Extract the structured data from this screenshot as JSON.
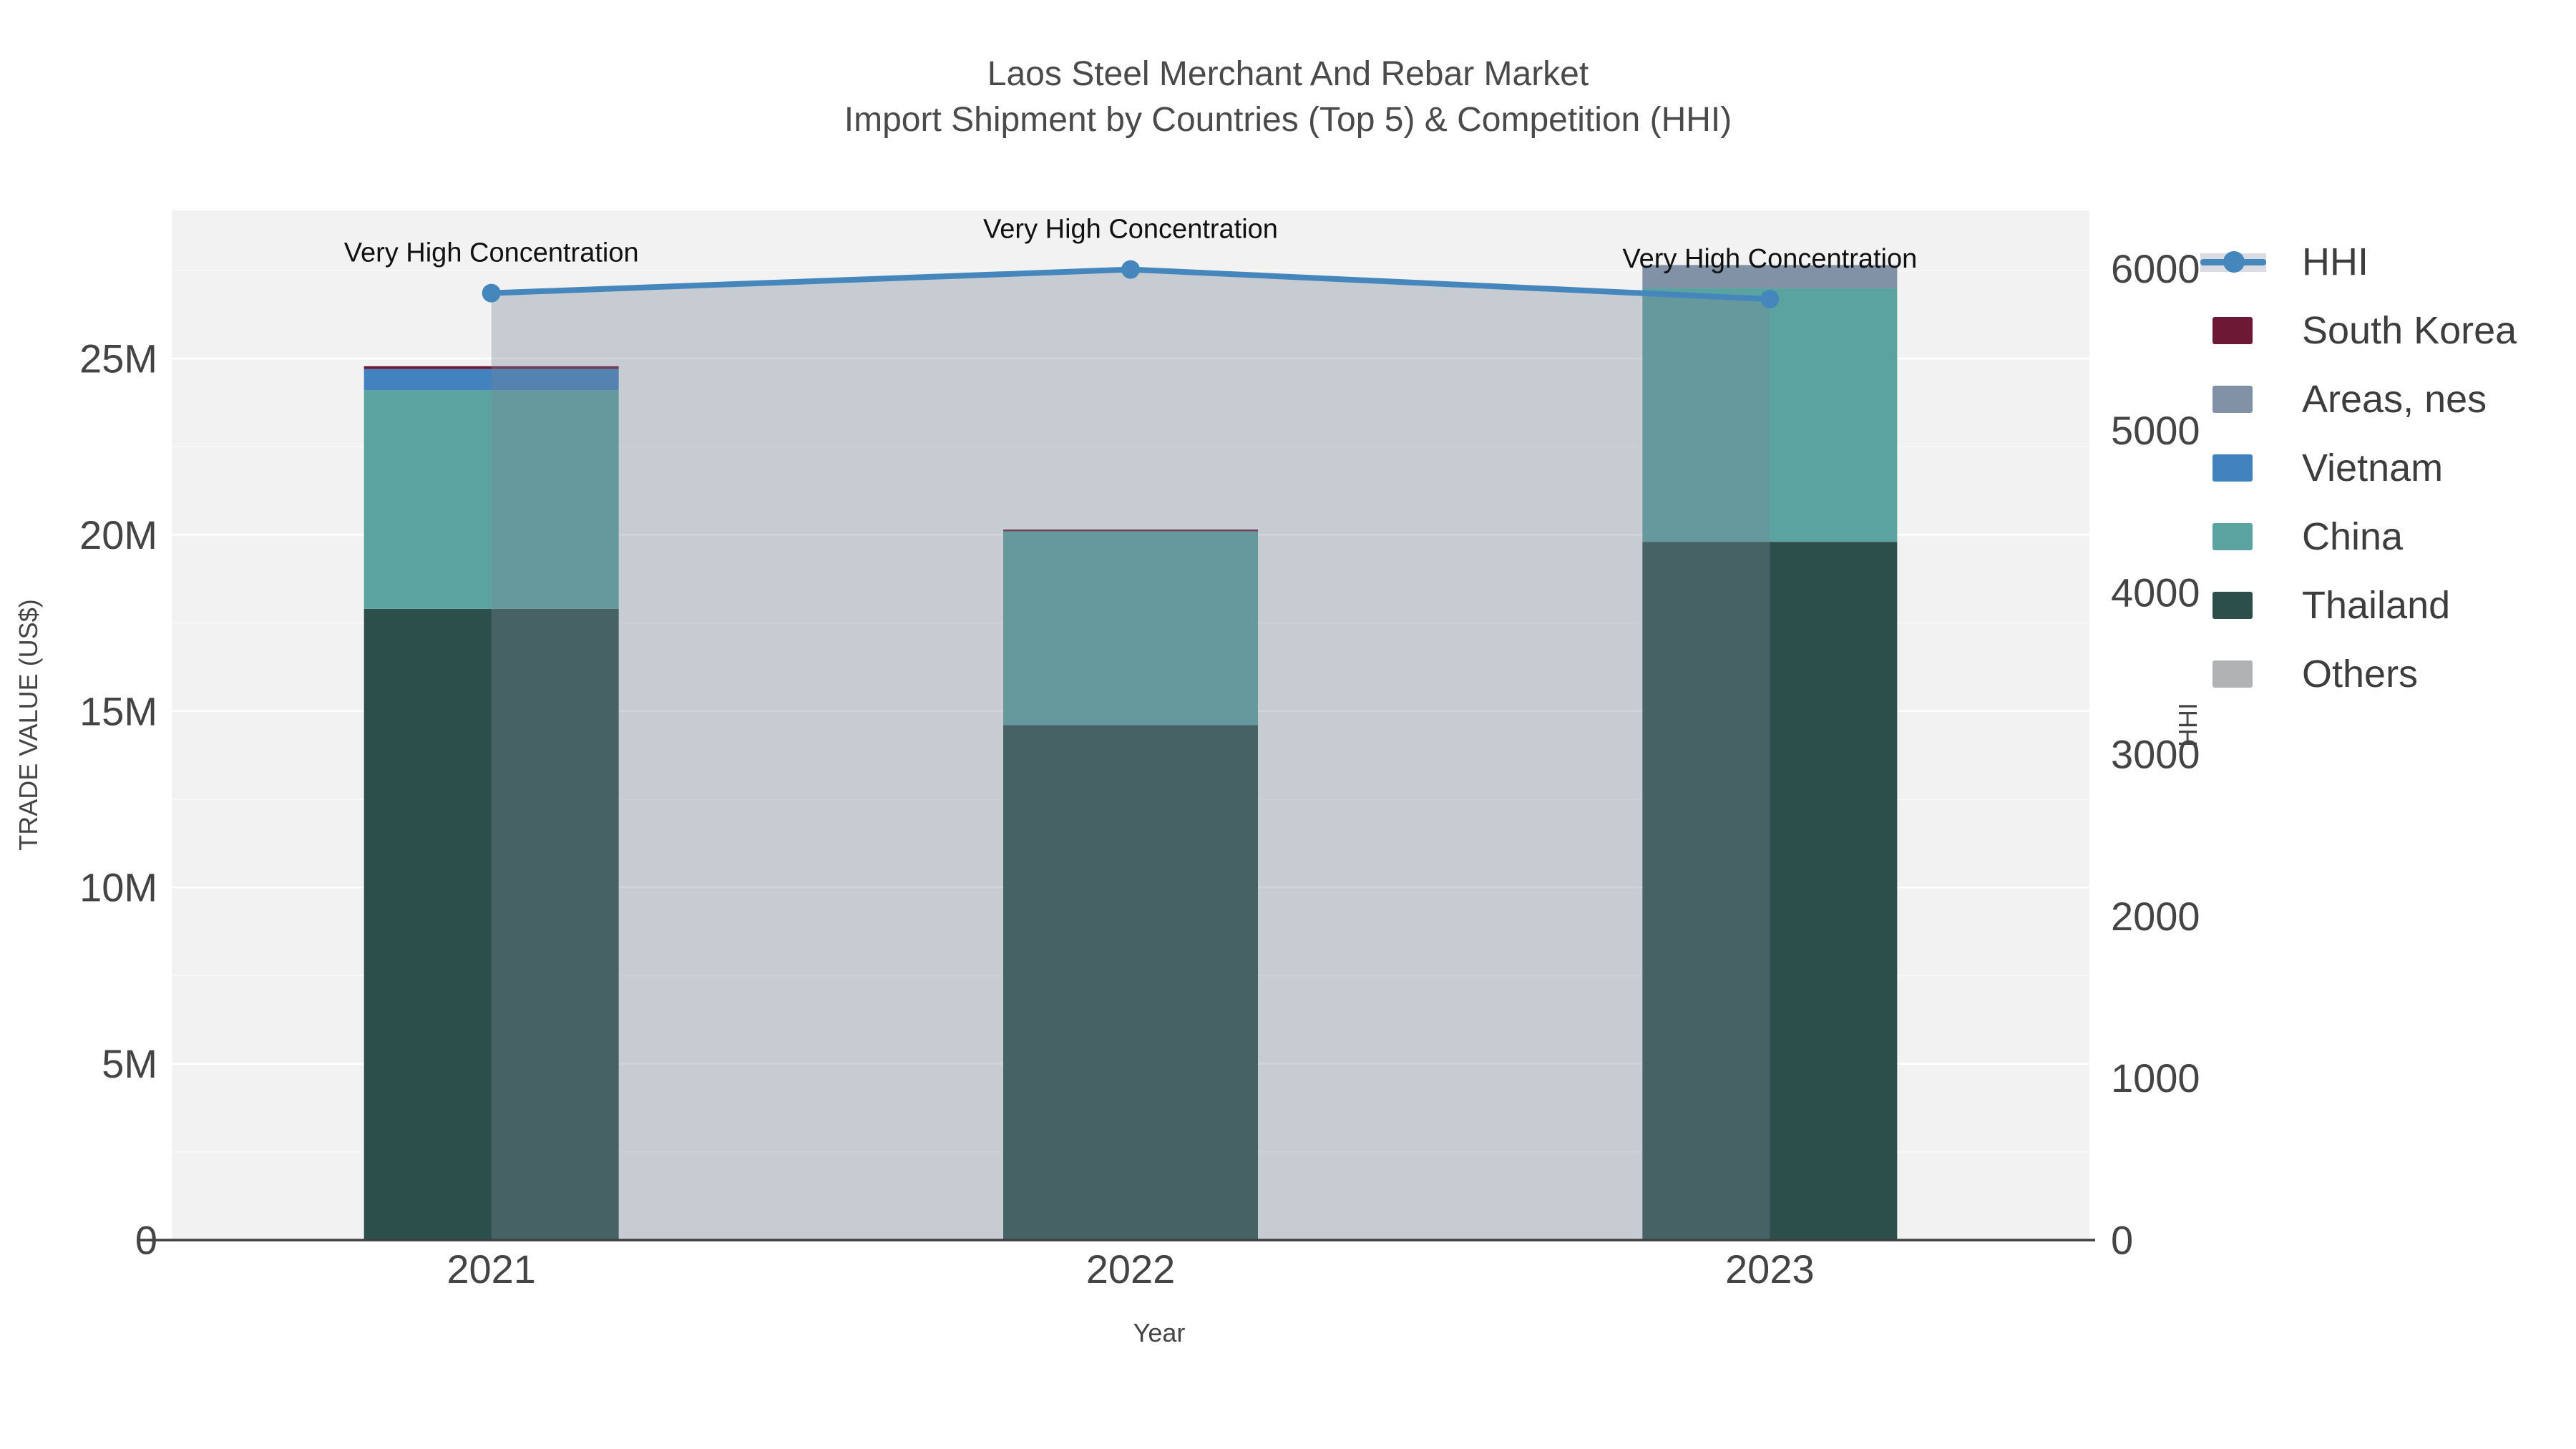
{
  "title": {
    "line1": "Laos Steel Merchant And Rebar Market",
    "line2": "Import Shipment by Countries (Top 5) & Competition (HHI)"
  },
  "chart_data": {
    "type": "bar+line",
    "title": "Laos Steel Merchant And Rebar Market — Import Shipment by Countries (Top 5) & Competition (HHI)",
    "categories": [
      "2021",
      "2022",
      "2023"
    ],
    "bar_unit": "M US$",
    "series": [
      {
        "name": "Thailand",
        "color": "#2d4f4b",
        "values": [
          17.9,
          14.6,
          19.8
        ]
      },
      {
        "name": "China",
        "color": "#5ba3a0",
        "values": [
          6.2,
          5.5,
          7.2
        ]
      },
      {
        "name": "Vietnam",
        "color": "#4282bf",
        "values": [
          0.6,
          0,
          0
        ]
      },
      {
        "name": "Areas, nes",
        "color": "#8191a6",
        "values": [
          0,
          0,
          0.65
        ]
      },
      {
        "name": "South Korea",
        "color": "#6d1936",
        "values": [
          0.08,
          0.05,
          0
        ]
      },
      {
        "name": "Others",
        "color": "#b0b2b4",
        "values": [
          0,
          0,
          0
        ]
      }
    ],
    "line_series": {
      "name": "HHI",
      "color": "#4587bd",
      "fill_color": "rgba(119,136,153,0.35)",
      "values": [
        5849,
        5995,
        5812
      ]
    },
    "annotations": [
      "Very High Concentration",
      "Very High Concentration",
      "Very High Concentration"
    ],
    "y_left": {
      "title": "TRADE VALUE (US$)",
      "tick_labels": [
        "0",
        "5M",
        "10M",
        "15M",
        "20M",
        "25M"
      ],
      "tick_values": [
        0,
        5,
        10,
        15,
        20,
        25
      ],
      "range": [
        0,
        29.2
      ],
      "minor_step": 2.5
    },
    "y_right": {
      "title": "HHI",
      "tick_labels": [
        "0",
        "1000",
        "2000",
        "3000",
        "4000",
        "5000",
        "6000"
      ],
      "tick_values": [
        0,
        1000,
        2000,
        3000,
        4000,
        5000,
        6000
      ],
      "range": [
        0,
        6360
      ]
    },
    "x_axis": {
      "title": "Year"
    },
    "legend": [
      {
        "label": "HHI",
        "type": "line",
        "color": "#4587bd"
      },
      {
        "label": "South Korea",
        "type": "swatch",
        "color": "#6d1936"
      },
      {
        "label": "Areas, nes",
        "type": "swatch",
        "color": "#8191a6"
      },
      {
        "label": "Vietnam",
        "type": "swatch",
        "color": "#4282bf"
      },
      {
        "label": "China",
        "type": "swatch",
        "color": "#5ba3a0"
      },
      {
        "label": "Thailand",
        "type": "swatch",
        "color": "#2d4f4b"
      },
      {
        "label": "Others",
        "type": "swatch",
        "color": "#b0b2b4"
      }
    ],
    "layout_hints": {
      "plot_bg": "#f2f2f2",
      "grid_color": "#ffffff",
      "baseline_color": "#3f3f3f",
      "tick_color": "#444444",
      "legend_position": "right",
      "grid": true
    }
  }
}
